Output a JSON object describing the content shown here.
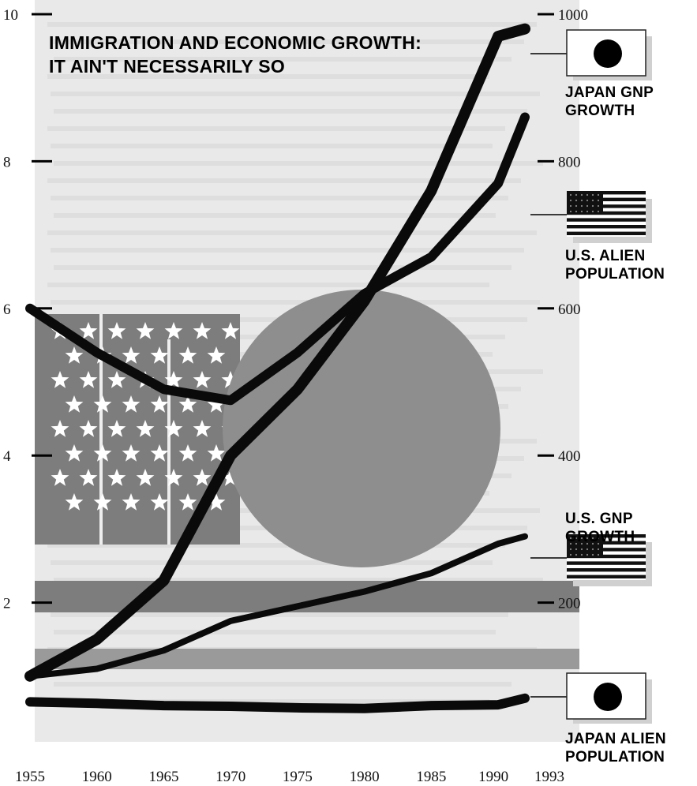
{
  "chart_data": {
    "type": "line",
    "title": "IMMIGRATION AND ECONOMIC GROWTH: IT AIN'T NECESSARILY SO",
    "x": [
      1955,
      1960,
      1965,
      1970,
      1975,
      1980,
      1985,
      1990,
      1993
    ],
    "x_tick_labels": [
      "1955",
      "1960",
      "1965",
      "1970",
      "1975",
      "1980",
      "1985",
      "1990",
      "1993"
    ],
    "left_axis": {
      "ylim": [
        0,
        10
      ],
      "ticks": [
        "2",
        "4",
        "6",
        "8",
        "10"
      ]
    },
    "right_axis": {
      "ylim": [
        0,
        1000
      ],
      "ticks": [
        "200",
        "400",
        "600",
        "800",
        "1000"
      ]
    },
    "series": [
      {
        "name": "JAPAN GNP GROWTH",
        "label_lines": [
          "JAPAN GNP",
          "GROWTH"
        ],
        "axis": "right",
        "flag": "japan",
        "values": [
          100,
          150,
          230,
          400,
          490,
          610,
          760,
          970,
          980
        ]
      },
      {
        "name": "U.S. ALIEN POPULATION",
        "label_lines": [
          "U.S. ALIEN",
          "POPULATION"
        ],
        "axis": "left",
        "flag": "us",
        "values": [
          6.0,
          5.4,
          4.9,
          4.75,
          5.4,
          6.2,
          6.7,
          7.7,
          8.6
        ]
      },
      {
        "name": "U.S. GNP GROWTH",
        "label_lines": [
          "U.S. GNP",
          "GROWTH"
        ],
        "axis": "right",
        "flag": "us",
        "values": [
          100,
          110,
          135,
          175,
          195,
          215,
          240,
          280,
          290
        ]
      },
      {
        "name": "JAPAN ALIEN POPULATION",
        "label_lines": [
          "JAPAN ALIEN",
          "POPULATION"
        ],
        "axis": "left",
        "flag": "japan",
        "values": [
          0.65,
          0.63,
          0.6,
          0.59,
          0.57,
          0.56,
          0.6,
          0.61,
          0.7
        ]
      }
    ],
    "grid": false,
    "colors": {
      "line": "#0a0a0a",
      "japan_sun": "#8e8e8e",
      "us_field": "#7d7d7d",
      "background_page": "#e9e9e9"
    }
  }
}
